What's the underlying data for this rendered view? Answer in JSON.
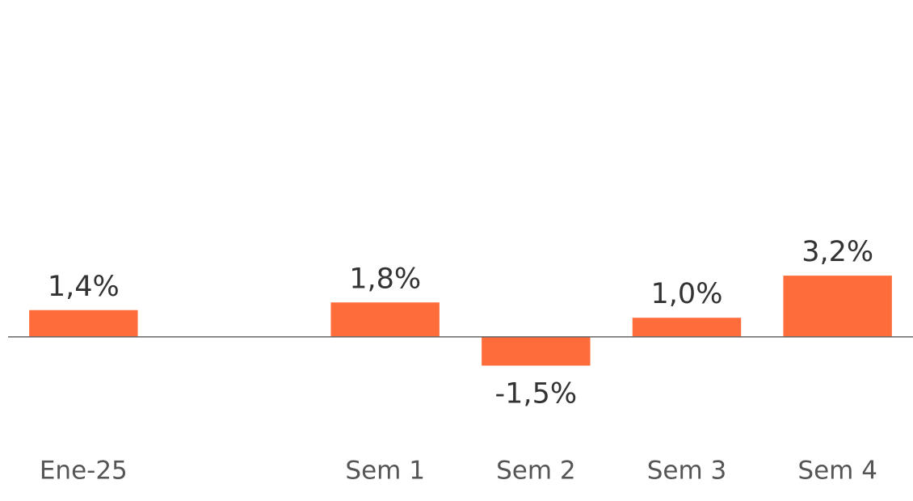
{
  "chart_data": {
    "type": "bar",
    "categories": [
      "Ene-25",
      null,
      "Sem 1",
      "Sem 2",
      "Sem 3",
      "Sem 4"
    ],
    "values": [
      1.4,
      null,
      1.8,
      -1.5,
      1.0,
      3.2
    ],
    "value_labels": [
      "1,4%",
      null,
      "1,8%",
      "-1,5%",
      "1,0%",
      "3,2%"
    ],
    "color": "#ff6c3b",
    "ylim": [
      -3,
      10
    ]
  }
}
